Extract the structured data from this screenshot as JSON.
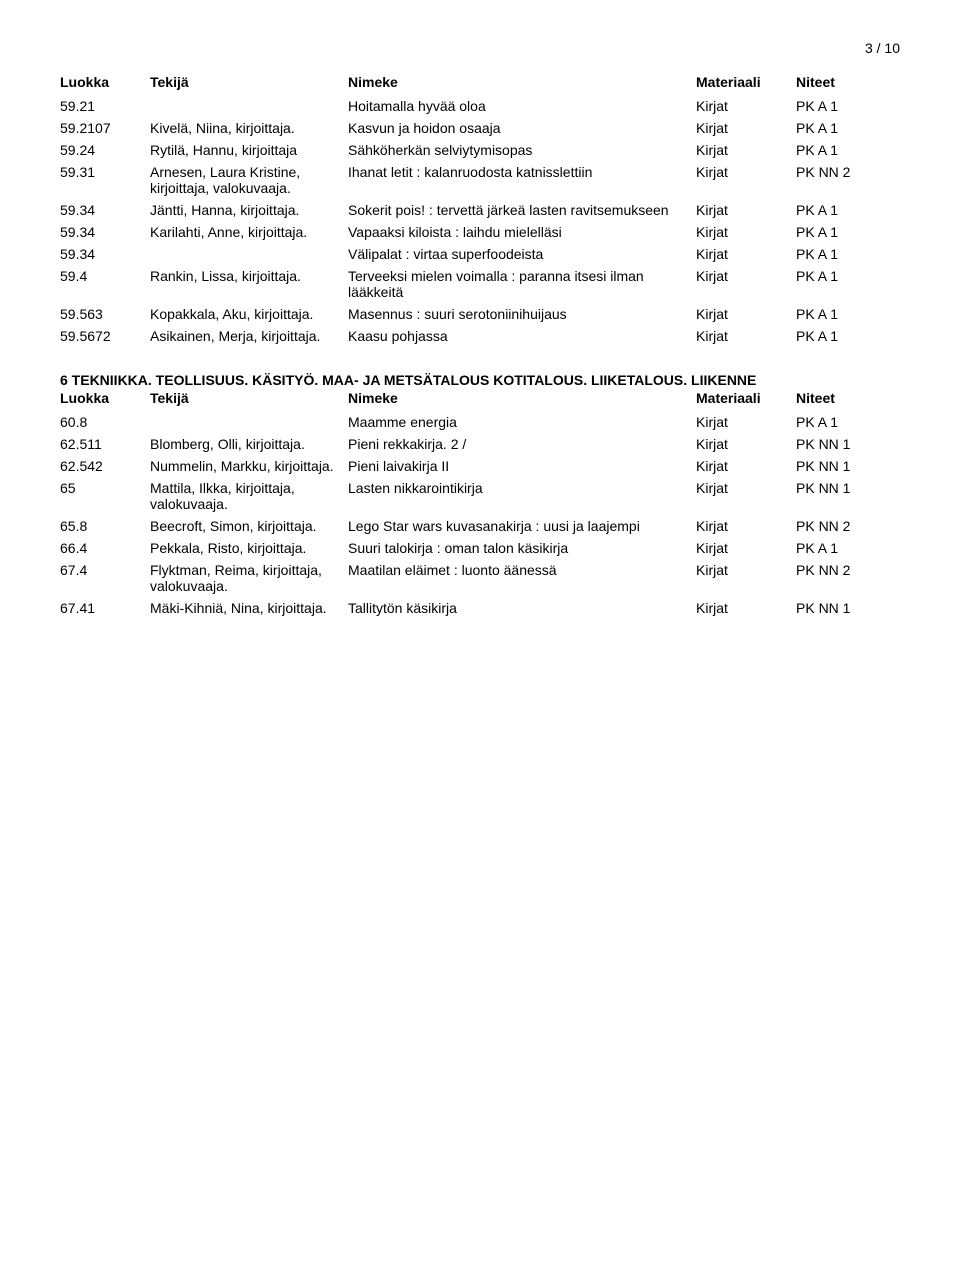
{
  "page_number": "3 / 10",
  "columns": {
    "luokka": "Luokka",
    "tekija": "Tekijä",
    "nimeke": "Nimeke",
    "materiaali": "Materiaali",
    "niteet": "Niteet"
  },
  "table1": [
    {
      "luokka": "59.21",
      "tekija": "",
      "nimeke": "Hoitamalla hyvää oloa",
      "materiaali": "Kirjat",
      "niteet": "PK A 1"
    },
    {
      "luokka": "59.2107",
      "tekija": "Kivelä, Niina, kirjoittaja.",
      "nimeke": "Kasvun ja hoidon osaaja",
      "materiaali": "Kirjat",
      "niteet": "PK A 1"
    },
    {
      "luokka": "59.24",
      "tekija": "Rytilä, Hannu, kirjoittaja",
      "nimeke": "Sähköherkän selviytymisopas",
      "materiaali": "Kirjat",
      "niteet": "PK A 1"
    },
    {
      "luokka": "59.31",
      "tekija": "Arnesen, Laura Kristine, kirjoittaja, valokuvaaja.",
      "nimeke": "Ihanat letit : kalanruodosta katnisslettiin",
      "materiaali": "Kirjat",
      "niteet": "PK NN 2"
    },
    {
      "luokka": "59.34",
      "tekija": "Jäntti, Hanna, kirjoittaja.",
      "nimeke": "Sokerit pois! : tervettä järkeä lasten ravitsemukseen",
      "materiaali": "Kirjat",
      "niteet": "PK A 1"
    },
    {
      "luokka": "59.34",
      "tekija": "Karilahti, Anne, kirjoittaja.",
      "nimeke": "Vapaaksi kiloista : laihdu mielelläsi",
      "materiaali": "Kirjat",
      "niteet": "PK A 1"
    },
    {
      "luokka": "59.34",
      "tekija": "",
      "nimeke": "Välipalat : virtaa superfoodeista",
      "materiaali": "Kirjat",
      "niteet": "PK A 1"
    },
    {
      "luokka": "59.4",
      "tekija": "Rankin, Lissa, kirjoittaja.",
      "nimeke": "Terveeksi mielen voimalla : paranna itsesi ilman lääkkeitä",
      "materiaali": "Kirjat",
      "niteet": "PK A 1"
    },
    {
      "luokka": "59.563",
      "tekija": "Kopakkala, Aku, kirjoittaja.",
      "nimeke": "Masennus : suuri serotoniinihuijaus",
      "materiaali": "Kirjat",
      "niteet": "PK A 1"
    },
    {
      "luokka": "59.5672",
      "tekija": "Asikainen, Merja, kirjoittaja.",
      "nimeke": "Kaasu pohjassa",
      "materiaali": "Kirjat",
      "niteet": "PK A 1"
    }
  ],
  "section_heading": "6 TEKNIIKKA. TEOLLISUUS. KÄSITYÖ. MAA- JA METSÄTALOUS KOTITALOUS. LIIKETALOUS. LIIKENNE",
  "table2": [
    {
      "luokka": "60.8",
      "tekija": "",
      "nimeke": "Maamme energia",
      "materiaali": "Kirjat",
      "niteet": "PK A 1"
    },
    {
      "luokka": "62.511",
      "tekija": "Blomberg, Olli, kirjoittaja.",
      "nimeke": "Pieni rekkakirja. 2 /",
      "materiaali": "Kirjat",
      "niteet": "PK NN 1"
    },
    {
      "luokka": "62.542",
      "tekija": "Nummelin, Markku, kirjoittaja.",
      "nimeke": "Pieni laivakirja II",
      "materiaali": "Kirjat",
      "niteet": "PK NN 1"
    },
    {
      "luokka": "65",
      "tekija": "Mattila, Ilkka, kirjoittaja, valokuvaaja.",
      "nimeke": "Lasten nikkarointikirja",
      "materiaali": "Kirjat",
      "niteet": "PK NN 1"
    },
    {
      "luokka": "65.8",
      "tekija": "Beecroft, Simon, kirjoittaja.",
      "nimeke": "Lego Star wars kuvasanakirja : uusi ja laajempi",
      "materiaali": "Kirjat",
      "niteet": "PK NN 2"
    },
    {
      "luokka": "66.4",
      "tekija": "Pekkala, Risto, kirjoittaja.",
      "nimeke": "Suuri talokirja : oman talon käsikirja",
      "materiaali": "Kirjat",
      "niteet": "PK A 1"
    },
    {
      "luokka": "67.4",
      "tekija": "Flyktman, Reima, kirjoittaja, valokuvaaja.",
      "nimeke": "Maatilan eläimet : luonto äänessä",
      "materiaali": "Kirjat",
      "niteet": "PK NN 2"
    },
    {
      "luokka": "67.41",
      "tekija": "Mäki-Kihniä, Nina, kirjoittaja.",
      "nimeke": "Tallitytön käsikirja",
      "materiaali": "Kirjat",
      "niteet": "PK NN 1"
    }
  ]
}
